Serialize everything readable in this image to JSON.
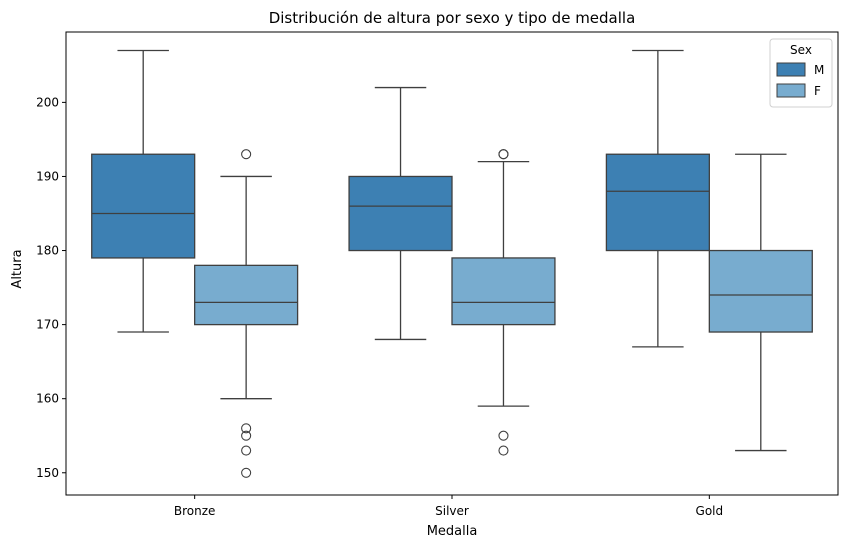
{
  "chart_data": {
    "type": "boxplot",
    "title": "Distribución de altura por sexo y tipo de medalla",
    "xlabel": "Medalla",
    "ylabel": "Altura",
    "categories": [
      "Bronze",
      "Silver",
      "Gold"
    ],
    "ylim": [
      147,
      209.5
    ],
    "yticks": [
      150,
      160,
      170,
      180,
      190,
      200
    ],
    "grid": false,
    "legend": {
      "title": "Sex",
      "placement": "top-right"
    },
    "series": [
      {
        "name": "M",
        "color": "#3d80b3",
        "boxes": [
          {
            "whisker_low": 169,
            "q1": 179,
            "median": 185,
            "q3": 193,
            "whisker_high": 207,
            "outliers": []
          },
          {
            "whisker_low": 168,
            "q1": 180,
            "median": 186,
            "q3": 190,
            "whisker_high": 202,
            "outliers": []
          },
          {
            "whisker_low": 167,
            "q1": 180,
            "median": 188,
            "q3": 193,
            "whisker_high": 207,
            "outliers": []
          }
        ]
      },
      {
        "name": "F",
        "color": "#78accf",
        "boxes": [
          {
            "whisker_low": 160,
            "q1": 170,
            "median": 173,
            "q3": 178,
            "whisker_high": 190,
            "outliers": [
              193,
              156,
              155,
              153,
              150
            ]
          },
          {
            "whisker_low": 159,
            "q1": 170,
            "median": 173,
            "q3": 179,
            "whisker_high": 192,
            "outliers": [
              193,
              193,
              155,
              153
            ]
          },
          {
            "whisker_low": 153,
            "q1": 169,
            "median": 174,
            "q3": 180,
            "whisker_high": 193,
            "outliers": []
          }
        ]
      }
    ]
  }
}
